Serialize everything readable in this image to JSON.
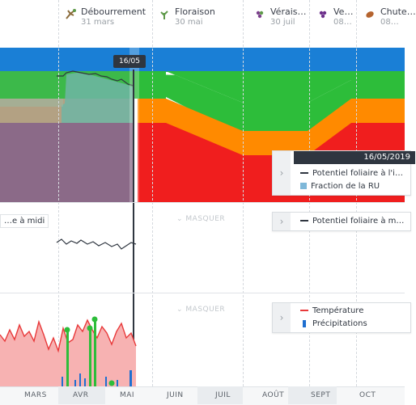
{
  "stages": [
    {
      "name": "Débourrement",
      "date": "31 mars",
      "icon": "bud-icon",
      "color": "#8a6b3a"
    },
    {
      "name": "Floraison",
      "date": "30 mai",
      "icon": "flower-icon",
      "color": "#5f9a4a"
    },
    {
      "name": "Vérais…",
      "date": "30 juil",
      "icon": "grape-icon",
      "color": "#7b3f8c"
    },
    {
      "name": "Ve…",
      "date": "08…",
      "icon": "grape-purple-icon",
      "color": "#6b2e8a"
    },
    {
      "name": "Chute…",
      "date": "08…",
      "icon": "falling-leaf-icon",
      "color": "#b5642f"
    }
  ],
  "cursor": {
    "label": "16/05"
  },
  "panel1": {
    "tooltip_date": "16/05/2019",
    "legend": [
      {
        "label": "Potentiel foliaire à l'i…",
        "color": "#2f3640"
      },
      {
        "label": "Fraction de la RU",
        "color": "#7fb8d9"
      }
    ],
    "colors": {
      "blue": "#1a7fd6",
      "green": "#2dbd3a",
      "orange": "#ff8a00",
      "red": "#f01e1e"
    }
  },
  "panel2": {
    "title": "…e à midi",
    "masquer": "MASQUER",
    "legend": [
      {
        "label": "Potentiel foliaire à m…",
        "color": "#2f3640"
      }
    ]
  },
  "panel3": {
    "masquer": "MASQUER",
    "legend": [
      {
        "label": "Température",
        "color": "#e8393a"
      },
      {
        "label": "Précipitations",
        "color": "#1f6fd0"
      }
    ]
  },
  "months": [
    "MARS",
    "AVR",
    "MAI",
    "JUIN",
    "JUIL",
    "AOÛT",
    "SEPT",
    "OCT"
  ]
}
